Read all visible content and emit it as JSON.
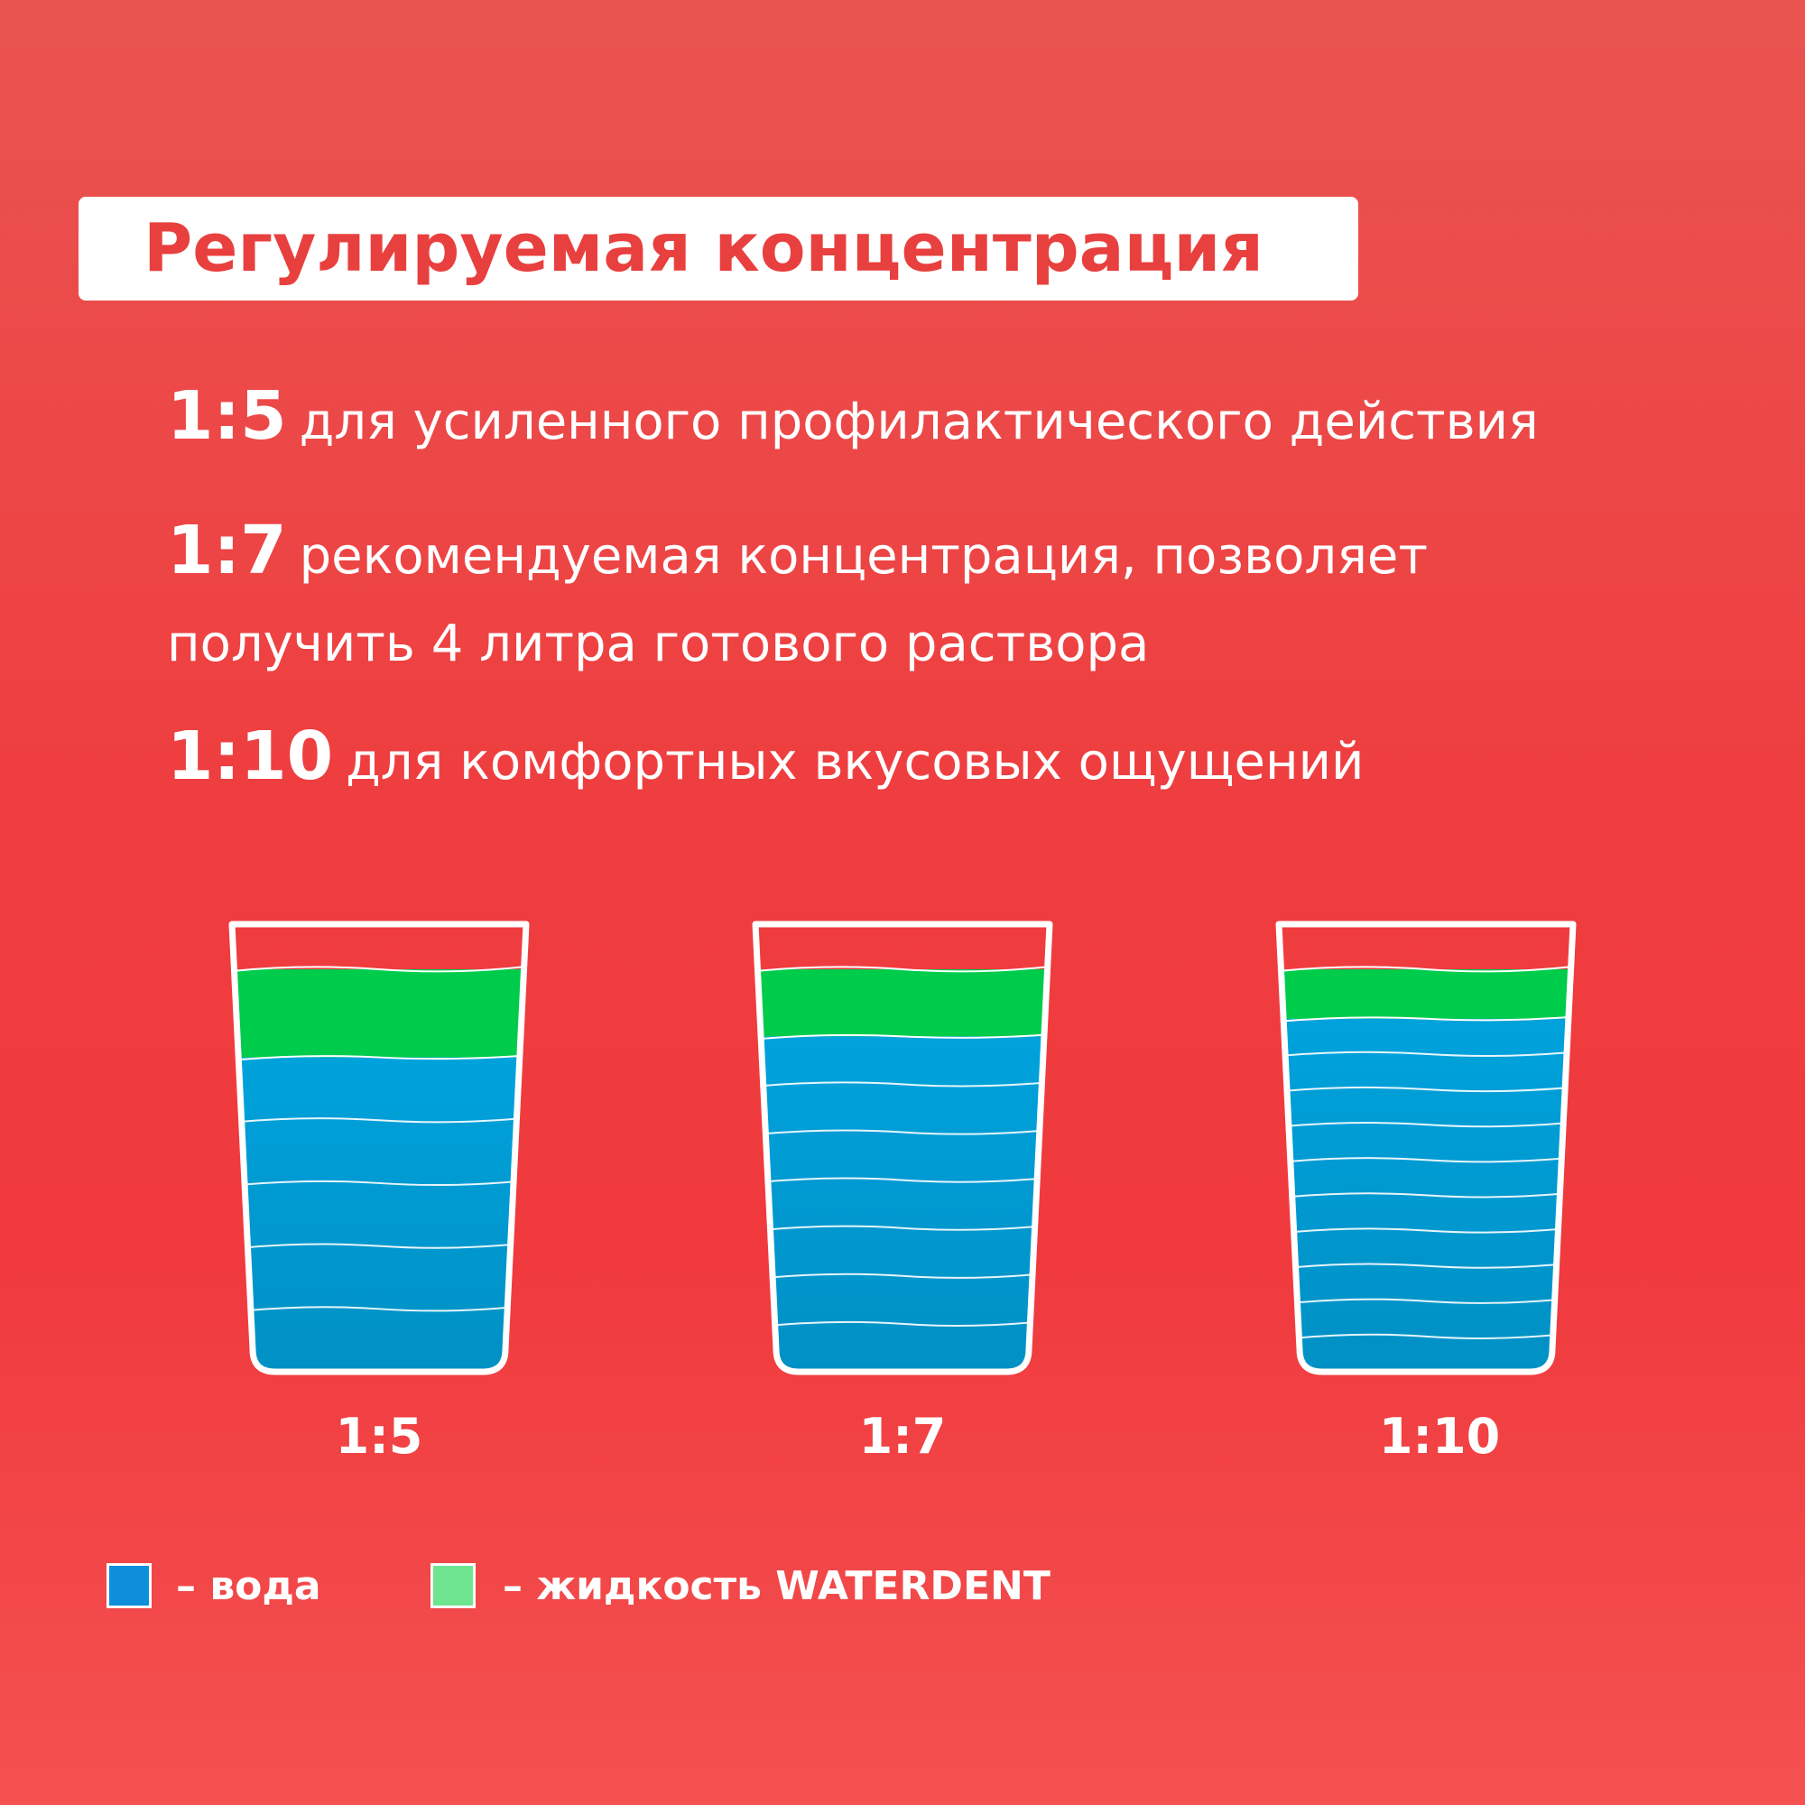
{
  "title": "Регулируемая концентрация",
  "options": [
    {
      "ratio": "1:5",
      "text": "для усиленного профилактического действия",
      "text2": ""
    },
    {
      "ratio": "1:7",
      "text": "рекомендуемая концентрация, позволяет",
      "text2": "получить 4 литра готового раствора"
    },
    {
      "ratio": "1:10",
      "text": "для комфортных вкусовых ощущений",
      "text2": ""
    }
  ],
  "glasses": [
    {
      "label": "1:5",
      "water_parts": 5,
      "liquid_parts": 1
    },
    {
      "label": "1:7",
      "water_parts": 7,
      "liquid_parts": 1
    },
    {
      "label": "1:10",
      "water_parts": 10,
      "liquid_parts": 1
    }
  ],
  "legend": {
    "water": "– вода",
    "liquid": "– жидкость WATERDENT"
  },
  "colors": {
    "water": "#00a2dc",
    "liquid": "#00cc4b",
    "liquid_light": "#6fe58f",
    "water_legend": "#0d8fdc",
    "title_text": "#e8403e"
  }
}
